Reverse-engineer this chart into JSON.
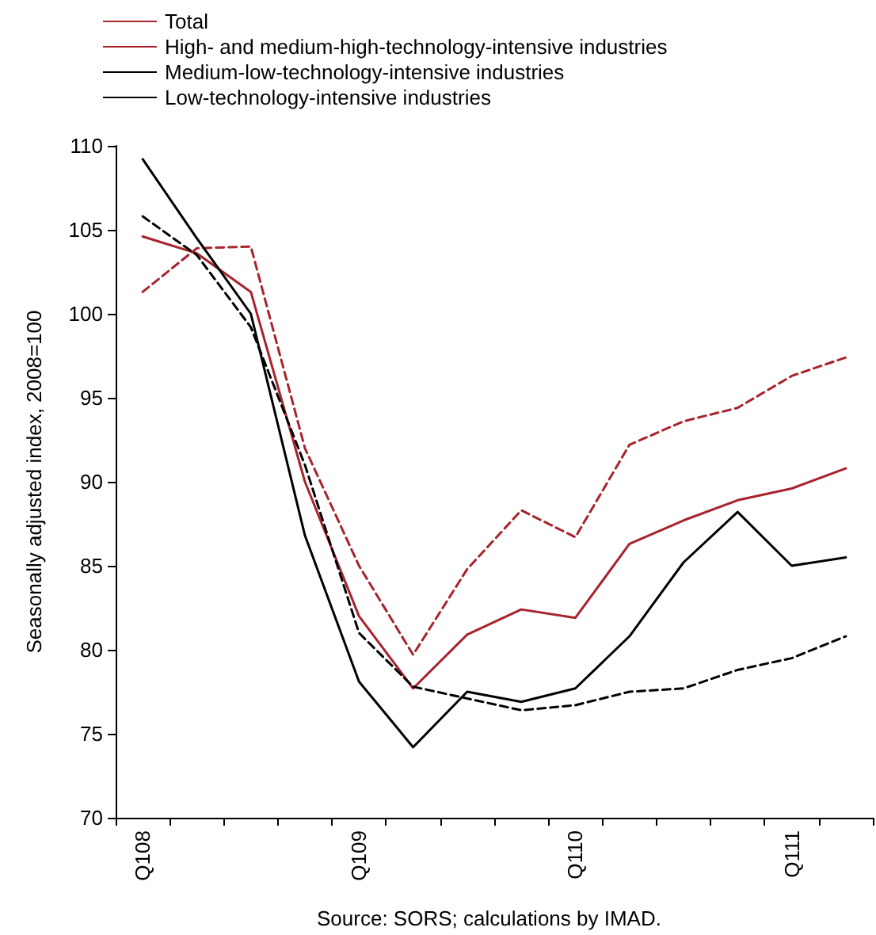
{
  "chart_data": {
    "type": "line",
    "categories": [
      "Q108",
      null,
      null,
      null,
      "Q109",
      null,
      null,
      null,
      "Q110",
      null,
      null,
      null,
      "Q111",
      null
    ],
    "series": [
      {
        "name": "Total",
        "color": "#a8232d",
        "line_style": "solid",
        "values": [
          104.6,
          103.6,
          101.3,
          90,
          82,
          77.7,
          80.9,
          82.4,
          81.9,
          86.3,
          87.7,
          88.9,
          89.6,
          90.8
        ]
      },
      {
        "name": "High- and medium-high-technology-intensive industries",
        "color": "#a8232d",
        "line_style": "dashed",
        "values": [
          101.3,
          103.9,
          104,
          92,
          85,
          79.7,
          84.8,
          88.3,
          86.7,
          92.2,
          93.6,
          94.4,
          96.3,
          97.4
        ]
      },
      {
        "name": "Medium-low-technology-intensive industries",
        "color": "#000000",
        "line_style": "solid",
        "values": [
          109.2,
          104.5,
          100,
          86.8,
          78.1,
          74.2,
          77.5,
          76.9,
          77.7,
          80.8,
          85.2,
          88.2,
          85,
          85.5
        ]
      },
      {
        "name": "Low-technology-intensive industries",
        "color": "#000000",
        "line_style": "dashed",
        "values": [
          105.8,
          103.5,
          99.2,
          91,
          81,
          77.8,
          77.1,
          76.4,
          76.7,
          77.5,
          77.7,
          78.8,
          79.5,
          80.8
        ]
      }
    ],
    "ylabel": "Seasonally adjusted index, 2008=100",
    "ylim": [
      70,
      110
    ],
    "yticks": [
      70,
      75,
      80,
      85,
      90,
      95,
      100,
      105,
      110
    ],
    "grid": false,
    "legend": "top left",
    "marker": "none",
    "annotations": [
      "Source: SORS; calculations by IMAD."
    ]
  }
}
